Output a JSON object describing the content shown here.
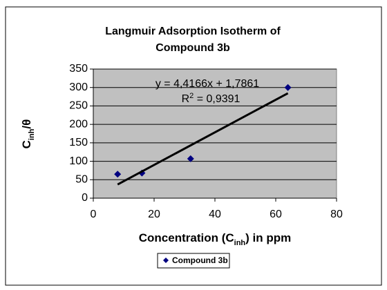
{
  "chart_data": {
    "type": "scatter",
    "title": [
      "Langmuir Adsorption Isotherm of",
      "Compound 3b"
    ],
    "xlabel": [
      "Concentration (C",
      "inh",
      ") in ppm"
    ],
    "ylabel": [
      "C",
      "inh",
      "/θ"
    ],
    "series": [
      {
        "name": "Compound 3b",
        "color": "#000080",
        "x": [
          8,
          16,
          32,
          64
        ],
        "values": [
          65,
          68,
          107,
          300
        ]
      }
    ],
    "trendline": {
      "color": "#000000",
      "x": [
        8,
        64
      ],
      "values": [
        37.1,
        284.4
      ]
    },
    "equation": "y = 4,4166x + 1,7861",
    "r_squared": [
      "R",
      "2",
      " = 0,9391"
    ],
    "xlim": [
      0,
      80
    ],
    "xticks": [
      0,
      20,
      40,
      60,
      80
    ],
    "ylim": [
      0,
      350
    ],
    "yticks": [
      0,
      50,
      100,
      150,
      200,
      250,
      300,
      350
    ],
    "grid": true
  }
}
